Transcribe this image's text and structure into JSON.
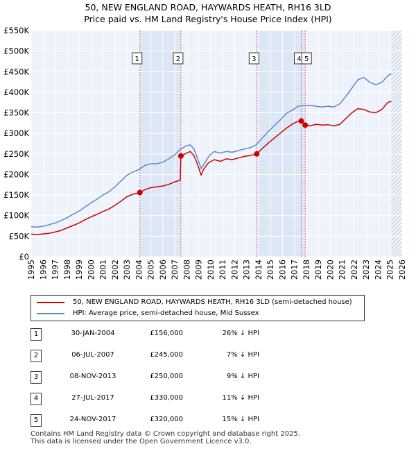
{
  "title_line1": "50, NEW ENGLAND ROAD, HAYWARDS HEATH, RH16 3LD",
  "title_line2": "Price paid vs. HM Land Registry's House Price Index (HPI)",
  "colors": {
    "red": "#cc0000",
    "blue": "#5b8ac6",
    "shade": "#dde6f5",
    "vline": "#e06666",
    "hatch": "#9aa4b8",
    "grid": "#ffffff"
  },
  "chart_data": {
    "type": "line",
    "title": "",
    "xlabel": "",
    "ylabel": "",
    "xlim": [
      1995,
      2026
    ],
    "ylim": [
      0,
      550000
    ],
    "yticks": [
      0,
      50000,
      100000,
      150000,
      200000,
      250000,
      300000,
      350000,
      400000,
      450000,
      500000,
      550000
    ],
    "ytick_labels": [
      "£0",
      "£50K",
      "£100K",
      "£150K",
      "£200K",
      "£250K",
      "£300K",
      "£350K",
      "£400K",
      "£450K",
      "£500K",
      "£550K"
    ],
    "xticks": [
      "1995",
      "1996",
      "1997",
      "1998",
      "1999",
      "2000",
      "2001",
      "2002",
      "2003",
      "2004",
      "2005",
      "2006",
      "2007",
      "2008",
      "2009",
      "2010",
      "2011",
      "2012",
      "2013",
      "2014",
      "2015",
      "2016",
      "2017",
      "2018",
      "2019",
      "2020",
      "2021",
      "2022",
      "2023",
      "2024",
      "2025",
      "2026"
    ],
    "future_hatch_from": 2025.1,
    "series": [
      {
        "name": "50, NEW ENGLAND ROAD, HAYWARDS HEATH, RH16 3LD (semi-detached house)",
        "color": "#cc0000",
        "points": [
          [
            1995.0,
            55000
          ],
          [
            1995.5,
            54000
          ],
          [
            1996.0,
            55500
          ],
          [
            1996.5,
            57000
          ],
          [
            1997.0,
            60000
          ],
          [
            1997.5,
            64000
          ],
          [
            1998.0,
            70000
          ],
          [
            1998.5,
            76000
          ],
          [
            1999.0,
            82000
          ],
          [
            1999.5,
            90000
          ],
          [
            2000.0,
            97000
          ],
          [
            2000.5,
            103000
          ],
          [
            2001.0,
            110000
          ],
          [
            2001.5,
            116000
          ],
          [
            2002.0,
            125000
          ],
          [
            2002.5,
            135000
          ],
          [
            2003.0,
            146000
          ],
          [
            2003.5,
            152000
          ],
          [
            2004.08,
            156000
          ],
          [
            2004.5,
            163000
          ],
          [
            2005.0,
            168000
          ],
          [
            2005.5,
            170000
          ],
          [
            2006.0,
            172000
          ],
          [
            2006.5,
            176000
          ],
          [
            2007.0,
            182000
          ],
          [
            2007.45,
            186000
          ],
          [
            2007.51,
            245000
          ],
          [
            2008.0,
            252000
          ],
          [
            2008.3,
            256000
          ],
          [
            2008.6,
            246000
          ],
          [
            2008.9,
            225000
          ],
          [
            2009.2,
            198000
          ],
          [
            2009.4,
            212000
          ],
          [
            2009.8,
            228000
          ],
          [
            2010.3,
            236000
          ],
          [
            2010.8,
            232000
          ],
          [
            2011.3,
            238000
          ],
          [
            2011.8,
            236000
          ],
          [
            2012.3,
            240000
          ],
          [
            2012.8,
            244000
          ],
          [
            2013.3,
            246000
          ],
          [
            2013.85,
            250000
          ],
          [
            2014.3,
            263000
          ],
          [
            2014.8,
            276000
          ],
          [
            2015.3,
            288000
          ],
          [
            2015.8,
            300000
          ],
          [
            2016.3,
            312000
          ],
          [
            2016.8,
            322000
          ],
          [
            2017.2,
            328000
          ],
          [
            2017.57,
            330000
          ],
          [
            2017.7,
            326000
          ],
          [
            2017.9,
            320000
          ],
          [
            2018.3,
            318000
          ],
          [
            2018.8,
            322000
          ],
          [
            2019.3,
            320000
          ],
          [
            2019.8,
            321000
          ],
          [
            2020.3,
            318000
          ],
          [
            2020.8,
            322000
          ],
          [
            2021.3,
            336000
          ],
          [
            2021.8,
            350000
          ],
          [
            2022.3,
            360000
          ],
          [
            2022.8,
            358000
          ],
          [
            2023.3,
            352000
          ],
          [
            2023.8,
            350000
          ],
          [
            2024.3,
            358000
          ],
          [
            2024.8,
            375000
          ],
          [
            2025.1,
            378000
          ]
        ]
      },
      {
        "name": "HPI: Average price, semi-detached house, Mid Sussex",
        "color": "#5b8ac6",
        "points": [
          [
            1995.0,
            73000
          ],
          [
            1995.5,
            72000
          ],
          [
            1996.0,
            74000
          ],
          [
            1996.5,
            78000
          ],
          [
            1997.0,
            82000
          ],
          [
            1997.5,
            88000
          ],
          [
            1998.0,
            95000
          ],
          [
            1998.5,
            103000
          ],
          [
            1999.0,
            111000
          ],
          [
            1999.5,
            121000
          ],
          [
            2000.0,
            131000
          ],
          [
            2000.5,
            140000
          ],
          [
            2001.0,
            150000
          ],
          [
            2001.5,
            158000
          ],
          [
            2002.0,
            170000
          ],
          [
            2002.5,
            184000
          ],
          [
            2003.0,
            198000
          ],
          [
            2003.5,
            206000
          ],
          [
            2004.0,
            212000
          ],
          [
            2004.5,
            222000
          ],
          [
            2005.0,
            226000
          ],
          [
            2005.5,
            226000
          ],
          [
            2006.0,
            230000
          ],
          [
            2006.5,
            238000
          ],
          [
            2007.0,
            248000
          ],
          [
            2007.5,
            262000
          ],
          [
            2008.0,
            270000
          ],
          [
            2008.3,
            272000
          ],
          [
            2008.6,
            262000
          ],
          [
            2008.9,
            240000
          ],
          [
            2009.2,
            214000
          ],
          [
            2009.5,
            228000
          ],
          [
            2009.9,
            246000
          ],
          [
            2010.3,
            256000
          ],
          [
            2010.8,
            252000
          ],
          [
            2011.3,
            256000
          ],
          [
            2011.8,
            254000
          ],
          [
            2012.3,
            258000
          ],
          [
            2012.8,
            262000
          ],
          [
            2013.3,
            265000
          ],
          [
            2013.8,
            272000
          ],
          [
            2014.3,
            288000
          ],
          [
            2014.8,
            304000
          ],
          [
            2015.3,
            318000
          ],
          [
            2015.8,
            332000
          ],
          [
            2016.3,
            348000
          ],
          [
            2016.8,
            356000
          ],
          [
            2017.3,
            366000
          ],
          [
            2017.8,
            368000
          ],
          [
            2018.3,
            368000
          ],
          [
            2018.8,
            366000
          ],
          [
            2019.3,
            364000
          ],
          [
            2019.8,
            366000
          ],
          [
            2020.3,
            364000
          ],
          [
            2020.8,
            372000
          ],
          [
            2021.3,
            390000
          ],
          [
            2021.8,
            410000
          ],
          [
            2022.3,
            430000
          ],
          [
            2022.8,
            436000
          ],
          [
            2023.3,
            424000
          ],
          [
            2023.8,
            418000
          ],
          [
            2024.3,
            424000
          ],
          [
            2024.8,
            440000
          ],
          [
            2025.1,
            445000
          ]
        ]
      }
    ],
    "transactions": [
      {
        "label": "1",
        "x": 2004.08,
        "price": 156000
      },
      {
        "label": "2",
        "x": 2007.51,
        "price": 245000
      },
      {
        "label": "3",
        "x": 2013.85,
        "price": 250000
      },
      {
        "label": "4",
        "x": 2017.57,
        "price": 330000
      },
      {
        "label": "5",
        "x": 2017.9,
        "price": 320000
      }
    ],
    "shaded_periods": [
      [
        2004.08,
        2007.51
      ],
      [
        2013.85,
        2017.9
      ]
    ],
    "legend_position": "below"
  },
  "legend": {
    "red_label": "50, NEW ENGLAND ROAD, HAYWARDS HEATH, RH16 3LD (semi-detached house)",
    "blue_label": "HPI: Average price, semi-detached house, Mid Sussex"
  },
  "table": [
    {
      "num": "1",
      "date": "30-JAN-2004",
      "price": "£156,000",
      "diff": "26% ↓ HPI"
    },
    {
      "num": "2",
      "date": "06-JUL-2007",
      "price": "£245,000",
      "diff": "7% ↓ HPI"
    },
    {
      "num": "3",
      "date": "08-NOV-2013",
      "price": "£250,000",
      "diff": "9% ↓ HPI"
    },
    {
      "num": "4",
      "date": "27-JUL-2017",
      "price": "£330,000",
      "diff": "11% ↓ HPI"
    },
    {
      "num": "5",
      "date": "24-NOV-2017",
      "price": "£320,000",
      "diff": "15% ↓ HPI"
    }
  ],
  "footer_line1": "Contains HM Land Registry data © Crown copyright and database right 2025.",
  "footer_line2": "This data is licensed under the Open Government Licence v3.0."
}
